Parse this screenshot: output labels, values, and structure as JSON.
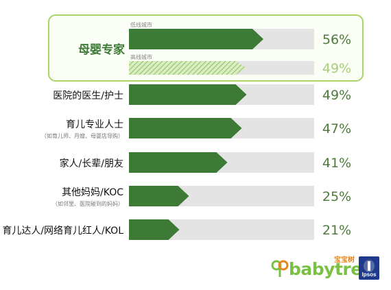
{
  "chart_data": {
    "type": "bar",
    "highlight_group": {
      "label": "母婴专家",
      "series": [
        {
          "name": "低线城市",
          "value": 56,
          "value_text": "56%"
        },
        {
          "name": "高线城市",
          "value": 49,
          "value_text": "49%"
        }
      ]
    },
    "categories": [
      {
        "label": "医院的医生/护士",
        "sub": "",
        "value": 49,
        "value_text": "49%"
      },
      {
        "label": "育儿专业人士",
        "sub": "（如育儿师、月嫂、母婴店导购）",
        "value": 47,
        "value_text": "47%"
      },
      {
        "label": "家人/长辈/朋友",
        "sub": "",
        "value": 41,
        "value_text": "41%"
      },
      {
        "label": "其他妈妈/KOC",
        "sub": "（如邻里、医院碰到的妈妈）",
        "value": 25,
        "value_text": "25%"
      },
      {
        "label": "育儿达人/网络育儿红人/KOL",
        "sub": "",
        "value": 21,
        "value_text": "21%"
      }
    ],
    "ylim": [
      0,
      100
    ]
  },
  "colors": {
    "bar": "#3d7a35",
    "track": "#e4e4e4",
    "highlight_border": "#a9d46b",
    "percent_text": "#4e7a3c",
    "percent_muted": "#a8cc7a",
    "hatch": "#9acb6a"
  },
  "logos": {
    "babytree": "babytree",
    "babytree_cn": "宝宝树",
    "ipsos": "Ipsos",
    "babytree_icon": "babytree-logo-icon",
    "ipsos_icon": "ipsos-logo-icon"
  }
}
